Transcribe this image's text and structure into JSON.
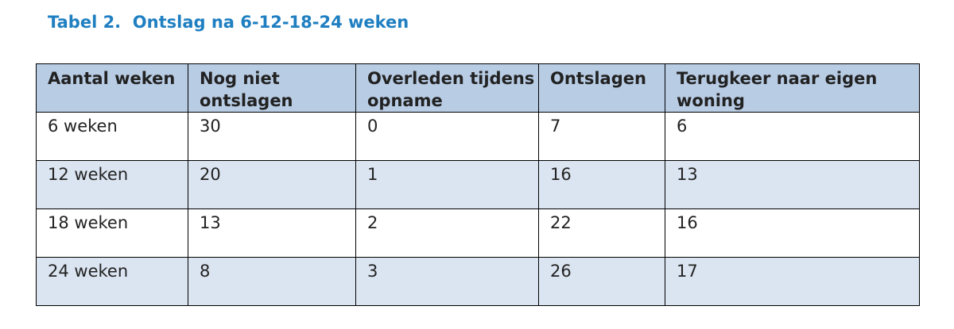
{
  "caption": "Tabel 2.  Ontslag na 6-12-18-24 weken",
  "table": {
    "headers": [
      "Aantal weken",
      "Nog niet ontslagen",
      "Overleden tijdens opname",
      "Ontslagen",
      "Terugkeer naar eigen woning"
    ],
    "rows": [
      [
        "6 weken",
        "30",
        "0",
        "7",
        "6"
      ],
      [
        "12 weken",
        "20",
        "1",
        "16",
        "13"
      ],
      [
        "18 weken",
        "13",
        "2",
        "22",
        "16"
      ],
      [
        "24 weken",
        "8",
        "3",
        "26",
        "17"
      ]
    ]
  },
  "colors": {
    "caption": "#1f7fc1",
    "header_fill": "#b8cce4",
    "band_fill": "#dbe5f1",
    "border": "#000000"
  }
}
